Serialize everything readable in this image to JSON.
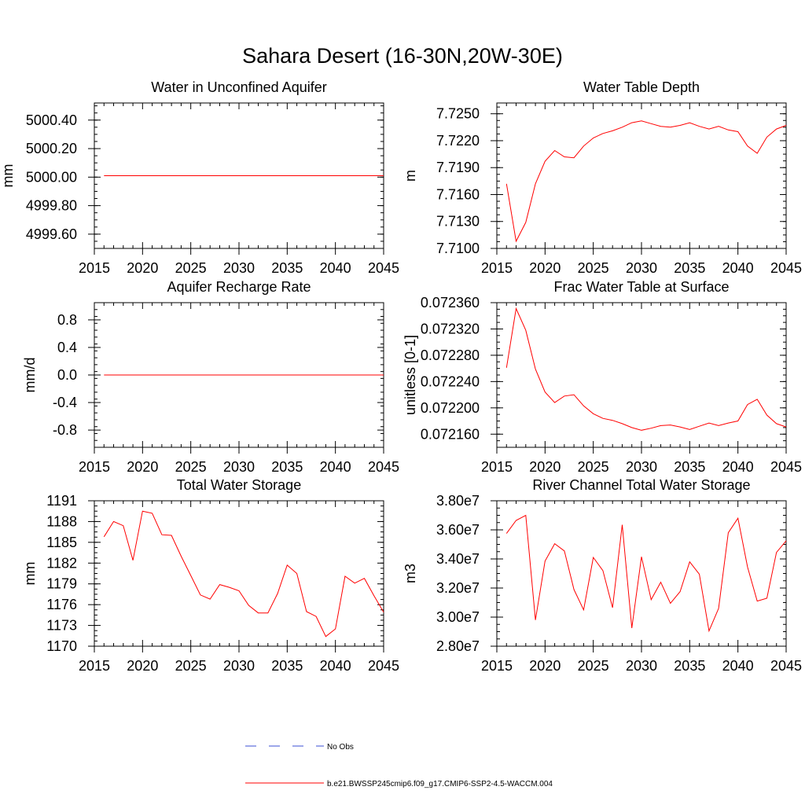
{
  "figure": {
    "title": "Sahara Desert (16-30N,20W-30E)"
  },
  "legend": {
    "entries": [
      {
        "label": "No Obs",
        "color": "#3b4fd6",
        "dash": true
      },
      {
        "label": "b.e21.BWSSP245cmip6.f09_g17.CMIP6-SSP2-4.5-WACCM.004",
        "color": "#ff0000",
        "dash": false
      }
    ]
  },
  "chart_data": [
    {
      "type": "line",
      "title": "Water in Unconfined Aquifer",
      "ylabel": "mm",
      "xlim": [
        2015,
        2045
      ],
      "ylim": [
        4999.5,
        5000.52
      ],
      "xticks": [
        "2015",
        "2020",
        "2025",
        "2030",
        "2035",
        "2040",
        "2045"
      ],
      "yticks": [
        4999.6,
        4999.8,
        5000.0,
        5000.2,
        5000.4
      ],
      "ytick_labels": [
        "4999.60",
        "4999.80",
        "5000.00",
        "5000.20",
        "5000.40"
      ],
      "series": [
        {
          "color": "#ff0000",
          "x": [
            2016,
            2045
          ],
          "y": [
            5000.01,
            5000.01
          ]
        }
      ]
    },
    {
      "type": "line",
      "title": "Water Table Depth",
      "ylabel": "m",
      "xlim": [
        2015,
        2045
      ],
      "ylim": [
        7.71,
        7.7262
      ],
      "xticks": [
        "2015",
        "2020",
        "2025",
        "2030",
        "2035",
        "2040",
        "2045"
      ],
      "yticks": [
        7.71,
        7.713,
        7.716,
        7.719,
        7.722,
        7.725
      ],
      "ytick_labels": [
        "7.7100",
        "7.7130",
        "7.7160",
        "7.7190",
        "7.7220",
        "7.7250"
      ],
      "series": [
        {
          "color": "#ff0000",
          "x": [
            2016,
            2017,
            2018,
            2019,
            2020,
            2021,
            2022,
            2023,
            2024,
            2025,
            2026,
            2027,
            2028,
            2029,
            2030,
            2031,
            2032,
            2033,
            2034,
            2035,
            2036,
            2037,
            2038,
            2039,
            2040,
            2041,
            2042,
            2043,
            2044,
            2045
          ],
          "y": [
            7.7172,
            7.7108,
            7.7129,
            7.7172,
            7.7197,
            7.7209,
            7.7202,
            7.7201,
            7.7214,
            7.7223,
            7.7228,
            7.7231,
            7.7235,
            7.724,
            7.7242,
            7.7239,
            7.7236,
            7.7235,
            7.7237,
            7.724,
            7.7236,
            7.7233,
            7.7236,
            7.7232,
            7.723,
            7.7214,
            7.7206,
            7.7224,
            7.7233,
            7.7237
          ]
        }
      ]
    },
    {
      "type": "line",
      "title": "Aquifer Recharge Rate",
      "ylabel": "mm/d",
      "xlim": [
        2015,
        2045
      ],
      "ylim": [
        -1.05,
        1.05
      ],
      "xticks": [
        "2015",
        "2020",
        "2025",
        "2030",
        "2035",
        "2040",
        "2045"
      ],
      "yticks": [
        -0.8,
        -0.4,
        0.0,
        0.4,
        0.8
      ],
      "ytick_labels": [
        "-0.8",
        "-0.4",
        "0.0",
        "0.4",
        "0.8"
      ],
      "series": [
        {
          "color": "#ff0000",
          "x": [
            2016,
            2045
          ],
          "y": [
            0.0,
            0.0
          ]
        }
      ]
    },
    {
      "type": "line",
      "title": "Frac Water Table at Surface",
      "ylabel": "unitless [0-1]",
      "xlim": [
        2015,
        2045
      ],
      "ylim": [
        0.07214,
        0.07236
      ],
      "xticks": [
        "2015",
        "2020",
        "2025",
        "2030",
        "2035",
        "2040",
        "2045"
      ],
      "yticks": [
        0.07216,
        0.0722,
        0.07224,
        0.07228,
        0.07232,
        0.07236
      ],
      "ytick_labels": [
        "0.072160",
        "0.072200",
        "0.072240",
        "0.072280",
        "0.072320",
        "0.072360"
      ],
      "series": [
        {
          "color": "#ff0000",
          "x": [
            2016,
            2017,
            2018,
            2019,
            2020,
            2021,
            2022,
            2023,
            2024,
            2025,
            2026,
            2027,
            2028,
            2029,
            2030,
            2031,
            2032,
            2033,
            2034,
            2035,
            2036,
            2037,
            2038,
            2039,
            2040,
            2041,
            2042,
            2043,
            2044,
            2045
          ],
          "y": [
            0.072261,
            0.072351,
            0.072318,
            0.072259,
            0.072224,
            0.072208,
            0.072218,
            0.07222,
            0.072203,
            0.072191,
            0.072184,
            0.072181,
            0.072176,
            0.07217,
            0.072166,
            0.072169,
            0.072173,
            0.072174,
            0.072171,
            0.072167,
            0.072172,
            0.072177,
            0.072173,
            0.072177,
            0.07218,
            0.072205,
            0.072213,
            0.072189,
            0.072176,
            0.072171
          ]
        }
      ]
    },
    {
      "type": "line",
      "title": "Total Water Storage",
      "ylabel": "mm",
      "xlim": [
        2015,
        2045
      ],
      "ylim": [
        1170,
        1191
      ],
      "xticks": [
        "2015",
        "2020",
        "2025",
        "2030",
        "2035",
        "2040",
        "2045"
      ],
      "yticks": [
        1170,
        1173,
        1176,
        1179,
        1182,
        1185,
        1188,
        1191
      ],
      "ytick_labels": [
        "1170",
        "1173",
        "1176",
        "1179",
        "1182",
        "1185",
        "1188",
        "1191"
      ],
      "series": [
        {
          "color": "#ff0000",
          "x": [
            2016,
            2017,
            2018,
            2019,
            2020,
            2021,
            2022,
            2023,
            2024,
            2025,
            2026,
            2027,
            2028,
            2029,
            2030,
            2031,
            2032,
            2033,
            2034,
            2035,
            2036,
            2037,
            2038,
            2039,
            2040,
            2041,
            2042,
            2043,
            2044,
            2045
          ],
          "y": [
            1185.8,
            1188.0,
            1187.4,
            1182.4,
            1189.5,
            1189.2,
            1186.1,
            1186.0,
            1183.0,
            1180.2,
            1177.4,
            1176.8,
            1178.9,
            1178.5,
            1178.0,
            1175.9,
            1174.8,
            1174.8,
            1177.6,
            1181.7,
            1180.5,
            1175.0,
            1174.3,
            1171.4,
            1172.5,
            1180.1,
            1179.1,
            1179.8,
            1177.3,
            1174.9
          ]
        }
      ]
    },
    {
      "type": "line",
      "title": "River Channel Total Water Storage",
      "ylabel": "m3",
      "xlim": [
        2015,
        2045
      ],
      "ylim": [
        28000000,
        38000000
      ],
      "xticks": [
        "2015",
        "2020",
        "2025",
        "2030",
        "2035",
        "2040",
        "2045"
      ],
      "yticks": [
        28000000,
        30000000,
        32000000,
        34000000,
        36000000,
        38000000
      ],
      "ytick_labels": [
        "2.80e7",
        "3.00e7",
        "3.20e7",
        "3.40e7",
        "3.60e7",
        "3.80e7"
      ],
      "series": [
        {
          "color": "#ff0000",
          "x": [
            2016,
            2017,
            2018,
            2019,
            2020,
            2021,
            2022,
            2023,
            2024,
            2025,
            2026,
            2027,
            2028,
            2029,
            2030,
            2031,
            2032,
            2033,
            2034,
            2035,
            2036,
            2037,
            2038,
            2039,
            2040,
            2041,
            2042,
            2043,
            2044,
            2045
          ],
          "y": [
            35750000,
            36650000,
            37000000,
            29800000,
            33850000,
            35050000,
            34550000,
            31900000,
            30500000,
            34100000,
            33200000,
            30650000,
            36350000,
            29250000,
            34150000,
            31200000,
            32400000,
            30950000,
            31750000,
            33800000,
            32950000,
            29050000,
            30600000,
            35800000,
            36800000,
            33450000,
            31100000,
            31300000,
            34450000,
            35250000
          ]
        }
      ]
    }
  ]
}
